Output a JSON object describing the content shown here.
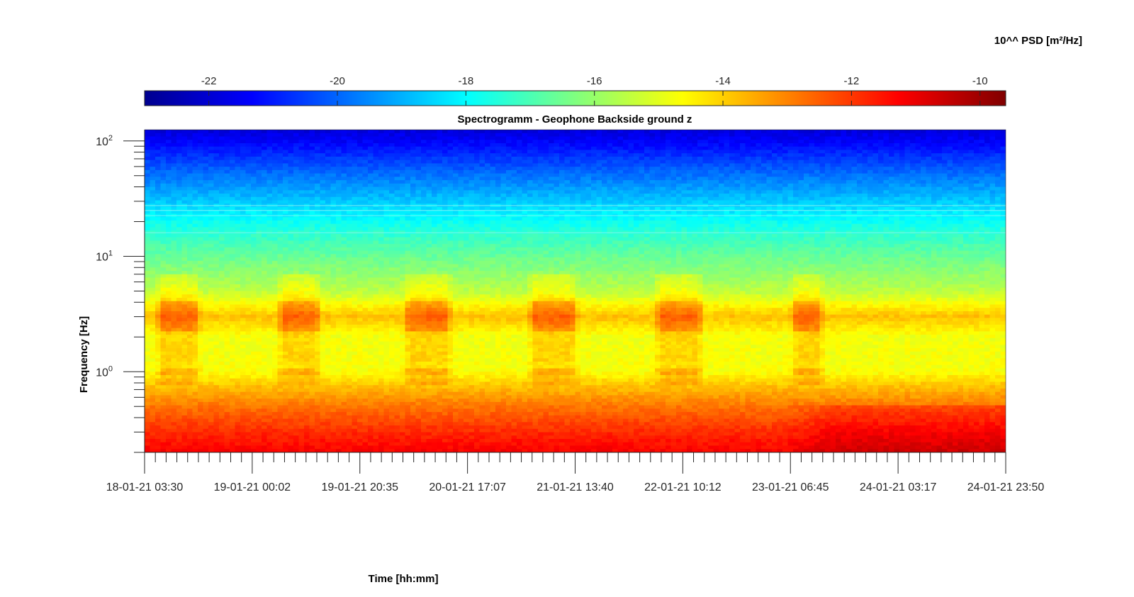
{
  "chart_data": {
    "type": "heatmap",
    "title": "Spectrogramm - Geophone Backside ground z",
    "xlabel": "Time [hh:mm]",
    "ylabel": "Frequency [Hz]",
    "x_tick_labels": [
      "18-01-21 03:30",
      "19-01-21 00:02",
      "19-01-21 20:35",
      "20-01-21 17:07",
      "21-01-21 13:40",
      "22-01-21 10:12",
      "23-01-21 06:45",
      "24-01-21 03:17",
      "24-01-21 23:50"
    ],
    "y_scale": "log",
    "ylim": [
      0.2,
      125
    ],
    "y_major_ticks": [
      1,
      10,
      100
    ],
    "y_major_tick_labels": [
      {
        "base": "10",
        "exp": "0"
      },
      {
        "base": "10",
        "exp": "1"
      },
      {
        "base": "10",
        "exp": "2"
      }
    ],
    "colorbar": {
      "title": "10^^ PSD [m²/Hz]",
      "range": [
        -23,
        -9.6
      ],
      "ticks": [
        -22,
        -20,
        -18,
        -16,
        -14,
        -12,
        -10
      ],
      "tick_labels": [
        "-22",
        "-20",
        "-18",
        "-16",
        "-14",
        "-12",
        "-10"
      ],
      "colormap": "jet",
      "location": "top"
    },
    "psd_profile": [
      {
        "freq": 0.2,
        "log10_psd": -11.2
      },
      {
        "freq": 0.3,
        "log10_psd": -11.8
      },
      {
        "freq": 0.5,
        "log10_psd": -12.8
      },
      {
        "freq": 0.75,
        "log10_psd": -13.8
      },
      {
        "freq": 1.0,
        "log10_psd": -14.7
      },
      {
        "freq": 2.0,
        "log10_psd": -14.8
      },
      {
        "freq": 3.0,
        "log10_psd": -13.8
      },
      {
        "freq": 5.0,
        "log10_psd": -15.5
      },
      {
        "freq": 10.0,
        "log10_psd": -16.6
      },
      {
        "freq": 16.0,
        "log10_psd": -17.4
      },
      {
        "freq": 25.0,
        "log10_psd": -18.3
      },
      {
        "freq": 50.0,
        "log10_psd": -19.8
      },
      {
        "freq": 100.0,
        "log10_psd": -21.4
      },
      {
        "freq": 125.0,
        "log10_psd": -21.8
      }
    ],
    "high_activity_periods_3hz": [
      [
        "18-01-21 ~07:00",
        "18-01-21 ~13:00"
      ],
      [
        "19-01-21 ~06:00",
        "19-01-21 ~12:00"
      ],
      [
        "20-01-21 ~06:00",
        "20-01-21 ~13:00"
      ],
      [
        "21-01-21 ~06:00",
        "21-01-21 ~13:00"
      ],
      [
        "22-01-21 ~06:00",
        "22-01-21 ~13:00"
      ],
      [
        "23-01-21 ~08:00",
        "23-01-21 ~12:00"
      ]
    ],
    "grid": false
  }
}
